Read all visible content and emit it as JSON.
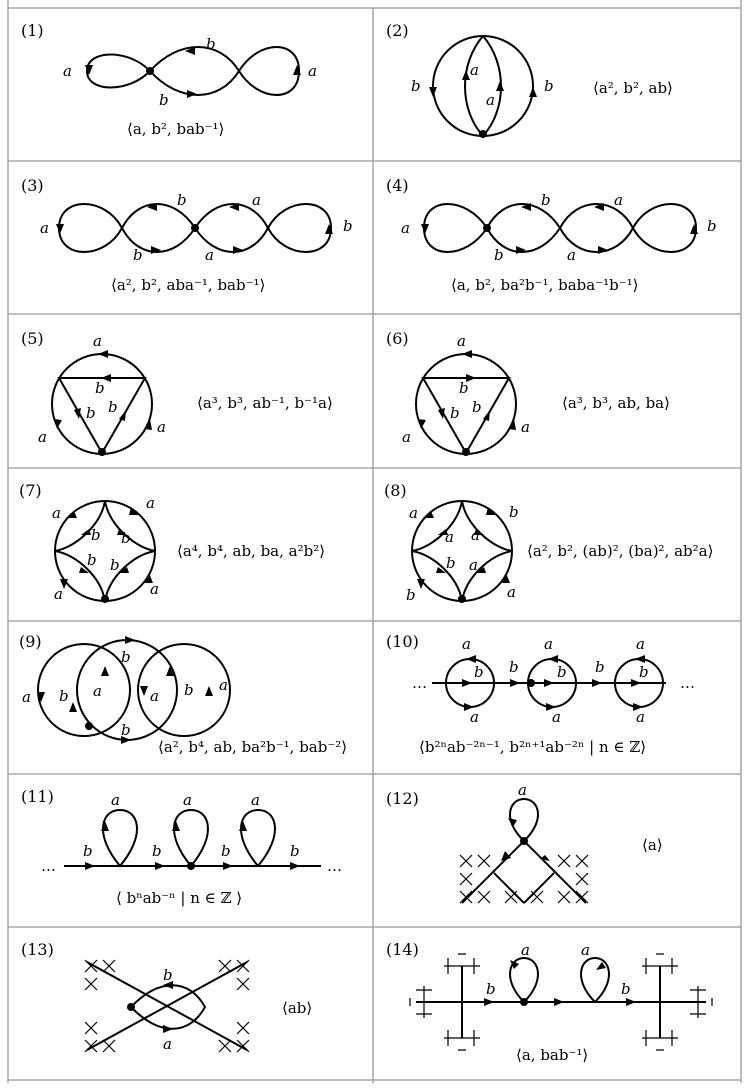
{
  "figure": {
    "cells": [
      {
        "number": "(1)",
        "labels": [
          "a",
          "b",
          "b",
          "a"
        ],
        "presentation": "⟨a, b², bab⁻¹⟩"
      },
      {
        "number": "(2)",
        "labels": [
          "b",
          "a",
          "a",
          "b"
        ],
        "presentation": "⟨a², b², ab⟩"
      },
      {
        "number": "(3)",
        "labels": [
          "a",
          "b",
          "b",
          "a",
          "a",
          "b"
        ],
        "presentation": "⟨a², b², aba⁻¹, bab⁻¹⟩"
      },
      {
        "number": "(4)",
        "labels": [
          "a",
          "b",
          "b",
          "a",
          "a",
          "b"
        ],
        "presentation": "⟨a, b², ba²b⁻¹, baba⁻¹b⁻¹⟩"
      },
      {
        "number": "(5)",
        "labels": [
          "a",
          "b",
          "b",
          "b",
          "a",
          "a"
        ],
        "presentation": "⟨a³, b³, ab⁻¹, b⁻¹a⟩"
      },
      {
        "number": "(6)",
        "labels": [
          "a",
          "b",
          "b",
          "b",
          "a",
          "a"
        ],
        "presentation": "⟨a³, b³, ab, ba⟩"
      },
      {
        "number": "(7)",
        "labels": [
          "a",
          "a",
          "b",
          "b",
          "b",
          "b",
          "a",
          "a"
        ],
        "presentation": "⟨a⁴, b⁴, ab, ba, a²b²⟩"
      },
      {
        "number": "(8)",
        "labels": [
          "a",
          "b",
          "a",
          "a",
          "b",
          "a",
          "b",
          "a"
        ],
        "presentation": "⟨a², b², (ab)², (ba)², ab²a⟩"
      },
      {
        "number": "(9)",
        "labels": [
          "b",
          "a",
          "b",
          "a",
          "a",
          "b",
          "a",
          "b"
        ],
        "presentation": "⟨a², b⁴, ab, ba²b⁻¹, bab⁻²⟩"
      },
      {
        "number": "(10)",
        "labels": [
          "a",
          "b",
          "a",
          "b",
          "a",
          "b",
          "a",
          "b",
          "a",
          "b",
          "a",
          "…",
          "…"
        ],
        "presentation": "⟨b²ⁿab⁻²ⁿ⁻¹, b²ⁿ⁺¹ab⁻²ⁿ | n ∈ ℤ⟩"
      },
      {
        "number": "(11)",
        "labels": [
          "a",
          "a",
          "a",
          "b",
          "b",
          "b",
          "b",
          "…",
          "…"
        ],
        "presentation": "⟨ bⁿab⁻ⁿ | n ∈ ℤ ⟩"
      },
      {
        "number": "(12)",
        "labels": [
          "a"
        ],
        "presentation": "⟨a⟩"
      },
      {
        "number": "(13)",
        "labels": [
          "b",
          "a"
        ],
        "presentation": "⟨ab⟩"
      },
      {
        "number": "(14)",
        "labels": [
          "a",
          "a",
          "b",
          "b"
        ],
        "presentation": "⟨a, bab⁻¹⟩"
      }
    ]
  }
}
